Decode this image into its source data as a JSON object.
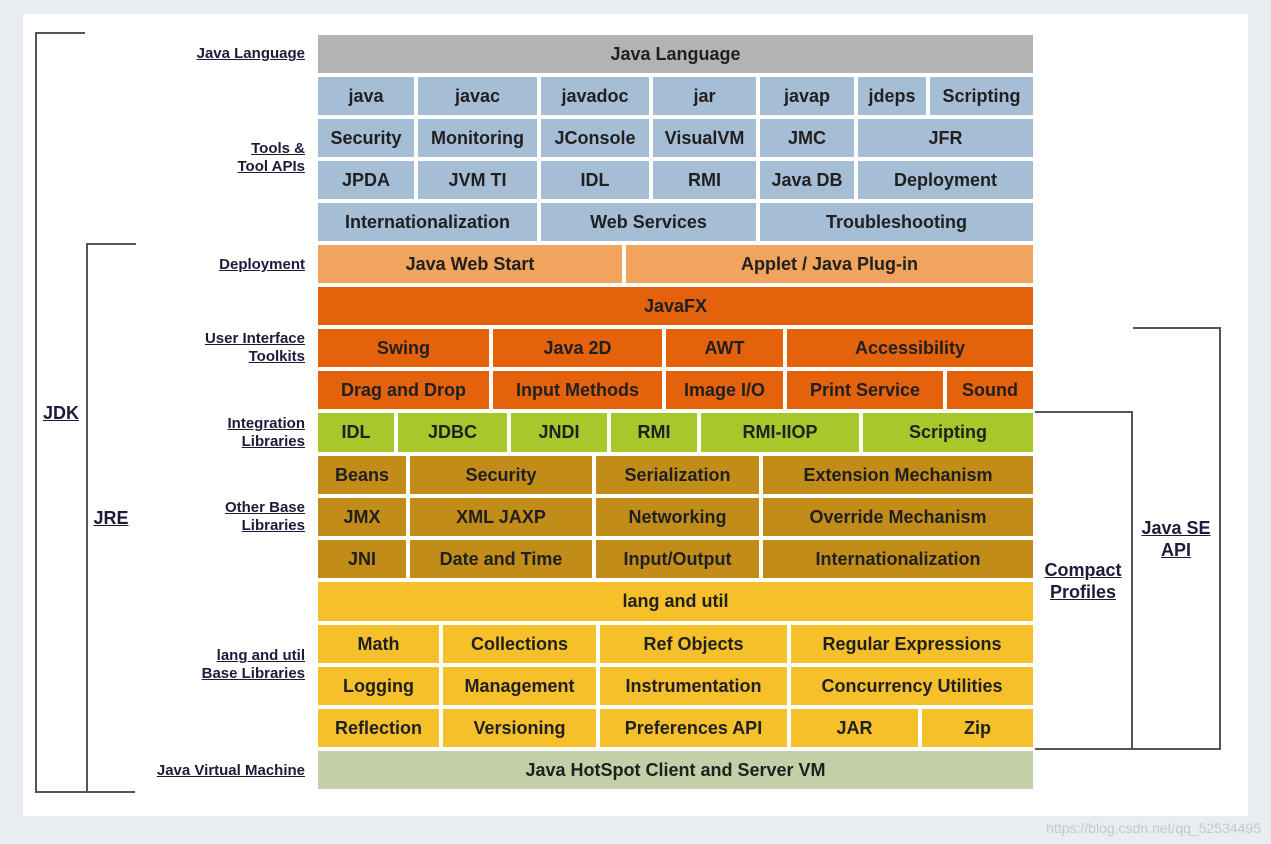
{
  "colors": {
    "gray": "#b3b3b3",
    "blue": "#a6bdd6",
    "light_orange": "#f0a45d",
    "orange": "#e4620c",
    "green": "#a8c72a",
    "brown": "#c18c18",
    "yellow": "#f6c02b",
    "sage": "#c3d0a7"
  },
  "left_labels": {
    "java_language": "Java Language",
    "tools_line1": "Tools &",
    "tools_line2": "Tool APIs",
    "deployment": "Deployment",
    "ui_line1": "User Interface",
    "ui_line2": "Toolkits",
    "integration_line1": "Integration",
    "integration_line2": "Libraries",
    "other_line1": "Other Base",
    "other_line2": "Libraries",
    "lang_line1": "lang and util",
    "lang_line2": "Base Libraries",
    "jvm": "Java Virtual Machine"
  },
  "brackets": {
    "jdk": "JDK",
    "jre": "JRE",
    "compact_line1": "Compact",
    "compact_line2": "Profiles",
    "javase_line1": "Java SE",
    "javase_line2": "API"
  },
  "cells": {
    "java_language": "Java Language",
    "tools_row1": [
      "java",
      "javac",
      "javadoc",
      "jar",
      "javap",
      "jdeps",
      "Scripting"
    ],
    "tools_row2": [
      "Security",
      "Monitoring",
      "JConsole",
      "VisualVM",
      "JMC",
      "JFR"
    ],
    "tools_row3": [
      "JPDA",
      "JVM TI",
      "IDL",
      "RMI",
      "Java DB",
      "Deployment"
    ],
    "tools_row4": [
      "Internationalization",
      "Web Services",
      "Troubleshooting"
    ],
    "deployment_row": [
      "Java Web Start",
      "Applet / Java Plug-in"
    ],
    "javafx": "JavaFX",
    "ui_row1": [
      "Swing",
      "Java 2D",
      "AWT",
      "Accessibility"
    ],
    "ui_row2": [
      "Drag and Drop",
      "Input Methods",
      "Image I/O",
      "Print Service",
      "Sound"
    ],
    "integration_row": [
      "IDL",
      "JDBC",
      "JNDI",
      "RMI",
      "RMI-IIOP",
      "Scripting"
    ],
    "other_row1": [
      "Beans",
      "Security",
      "Serialization",
      "Extension Mechanism"
    ],
    "other_row2": [
      "JMX",
      "XML JAXP",
      "Networking",
      "Override Mechanism"
    ],
    "other_row3": [
      "JNI",
      "Date and Time",
      "Input/Output",
      "Internationalization"
    ],
    "lang_util": "lang and util",
    "lang_row1": [
      "Math",
      "Collections",
      "Ref Objects",
      "Regular Expressions"
    ],
    "lang_row2": [
      "Logging",
      "Management",
      "Instrumentation",
      "Concurrency Utilities"
    ],
    "lang_row3": [
      "Reflection",
      "Versioning",
      "Preferences API",
      "JAR",
      "Zip"
    ],
    "jvm": "Java HotSpot Client and Server VM"
  },
  "watermark": "https://blog.csdn.net/qq_52534495"
}
